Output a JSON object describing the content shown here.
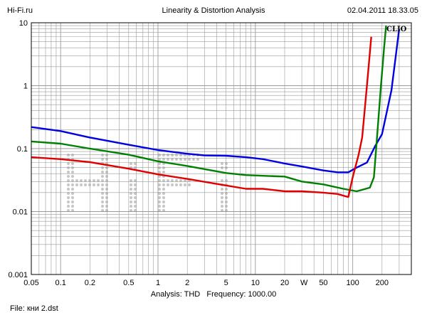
{
  "header": {
    "site": "Hi-Fi.ru",
    "title": "Linearity & Distortion Analysis",
    "datetime": "02.04.2011 18.33.05"
  },
  "footer": {
    "analysis_label": "Analysis: THD",
    "frequency_label": "Frequency: 1000.00",
    "file_label": "File: кни 2.dst"
  },
  "brand": "CLIO",
  "watermark_text": "HiFi",
  "chart_data": {
    "type": "line",
    "x_scale": "log",
    "y_scale": "log",
    "xlim": [
      0.05,
      400
    ],
    "ylim": [
      0.001,
      10
    ],
    "grid": true,
    "x_ticks": [
      {
        "value": 0.05,
        "label": "0.05"
      },
      {
        "value": 0.1,
        "label": "0.1"
      },
      {
        "value": 0.2,
        "label": "0.2"
      },
      {
        "value": 0.5,
        "label": "0.5"
      },
      {
        "value": 1,
        "label": "1"
      },
      {
        "value": 2,
        "label": "2"
      },
      {
        "value": 5,
        "label": "5"
      },
      {
        "value": 10,
        "label": "10"
      },
      {
        "value": 20,
        "label": "20"
      },
      {
        "value": 50,
        "label": "50"
      },
      {
        "value": 100,
        "label": "100"
      },
      {
        "value": 200,
        "label": "200"
      }
    ],
    "x_unit_label": "W",
    "y_ticks": [
      {
        "value": 10,
        "label": "10"
      },
      {
        "value": 1,
        "label": "1"
      },
      {
        "value": 0.1,
        "label": "0.1"
      },
      {
        "value": 0.01,
        "label": "0.01"
      },
      {
        "value": 0.001,
        "label": "0.001"
      }
    ],
    "series": [
      {
        "color": "#0000e0",
        "points": [
          [
            0.05,
            0.22
          ],
          [
            0.1,
            0.19
          ],
          [
            0.2,
            0.15
          ],
          [
            0.5,
            0.115
          ],
          [
            1,
            0.095
          ],
          [
            2,
            0.083
          ],
          [
            3,
            0.078
          ],
          [
            5,
            0.077
          ],
          [
            8,
            0.073
          ],
          [
            12,
            0.068
          ],
          [
            20,
            0.058
          ],
          [
            30,
            0.052
          ],
          [
            50,
            0.045
          ],
          [
            70,
            0.042
          ],
          [
            90,
            0.042
          ],
          [
            110,
            0.05
          ],
          [
            140,
            0.06
          ],
          [
            170,
            0.11
          ],
          [
            200,
            0.17
          ],
          [
            250,
            0.85
          ],
          [
            300,
            8
          ]
        ]
      },
      {
        "color": "#008000",
        "points": [
          [
            0.05,
            0.13
          ],
          [
            0.1,
            0.12
          ],
          [
            0.2,
            0.1
          ],
          [
            0.5,
            0.08
          ],
          [
            1,
            0.063
          ],
          [
            2,
            0.053
          ],
          [
            5,
            0.041
          ],
          [
            8,
            0.038
          ],
          [
            12,
            0.037
          ],
          [
            20,
            0.036
          ],
          [
            30,
            0.03
          ],
          [
            50,
            0.027
          ],
          [
            80,
            0.023
          ],
          [
            110,
            0.021
          ],
          [
            150,
            0.024
          ],
          [
            165,
            0.035
          ],
          [
            180,
            0.2
          ],
          [
            195,
            1
          ],
          [
            210,
            4
          ],
          [
            220,
            9
          ]
        ]
      },
      {
        "color": "#e00000",
        "points": [
          [
            0.05,
            0.073
          ],
          [
            0.1,
            0.068
          ],
          [
            0.2,
            0.061
          ],
          [
            0.5,
            0.048
          ],
          [
            1,
            0.039
          ],
          [
            2,
            0.033
          ],
          [
            5,
            0.026
          ],
          [
            8,
            0.023
          ],
          [
            12,
            0.023
          ],
          [
            20,
            0.021
          ],
          [
            30,
            0.021
          ],
          [
            50,
            0.02
          ],
          [
            70,
            0.019
          ],
          [
            90,
            0.017
          ],
          [
            100,
            0.035
          ],
          [
            115,
            0.08
          ],
          [
            125,
            0.15
          ],
          [
            140,
            1
          ],
          [
            155,
            6
          ]
        ]
      }
    ]
  }
}
